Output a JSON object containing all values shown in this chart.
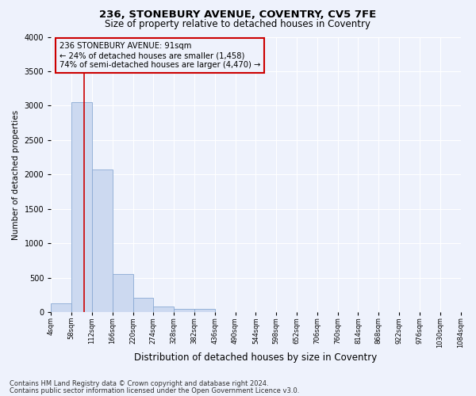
{
  "title_line1": "236, STONEBURY AVENUE, COVENTRY, CV5 7FE",
  "title_line2": "Size of property relative to detached houses in Coventry",
  "xlabel": "Distribution of detached houses by size in Coventry",
  "ylabel": "Number of detached properties",
  "footer_line1": "Contains HM Land Registry data © Crown copyright and database right 2024.",
  "footer_line2": "Contains public sector information licensed under the Open Government Licence v3.0.",
  "annotation_line1": "236 STONEBURY AVENUE: 91sqm",
  "annotation_line2": "← 24% of detached houses are smaller (1,458)",
  "annotation_line3": "74% of semi-detached houses are larger (4,470) →",
  "property_size": 91,
  "bin_edges": [
    4,
    58,
    112,
    166,
    220,
    274,
    328,
    382,
    436,
    490,
    544,
    598,
    652,
    706,
    760,
    814,
    868,
    922,
    976,
    1030,
    1084
  ],
  "bar_heights": [
    130,
    3050,
    2075,
    560,
    210,
    85,
    55,
    45,
    0,
    0,
    0,
    0,
    0,
    0,
    0,
    0,
    0,
    0,
    0,
    0
  ],
  "bar_color": "#ccd9f0",
  "bar_edge_color": "#8aaad4",
  "vline_color": "#cc0000",
  "vline_x": 91,
  "ylim": [
    0,
    4000
  ],
  "yticks": [
    0,
    500,
    1000,
    1500,
    2000,
    2500,
    3000,
    3500,
    4000
  ],
  "annotation_box_color": "#cc0000",
  "background_color": "#eef2fc",
  "grid_color": "#ffffff",
  "title1_fontsize": 9.5,
  "title2_fontsize": 8.5,
  "xlabel_fontsize": 8.5,
  "ylabel_fontsize": 7.5,
  "footer_fontsize": 6,
  "annotation_fontsize": 7.2,
  "tick_fontsize": 6,
  "ytick_fontsize": 7
}
